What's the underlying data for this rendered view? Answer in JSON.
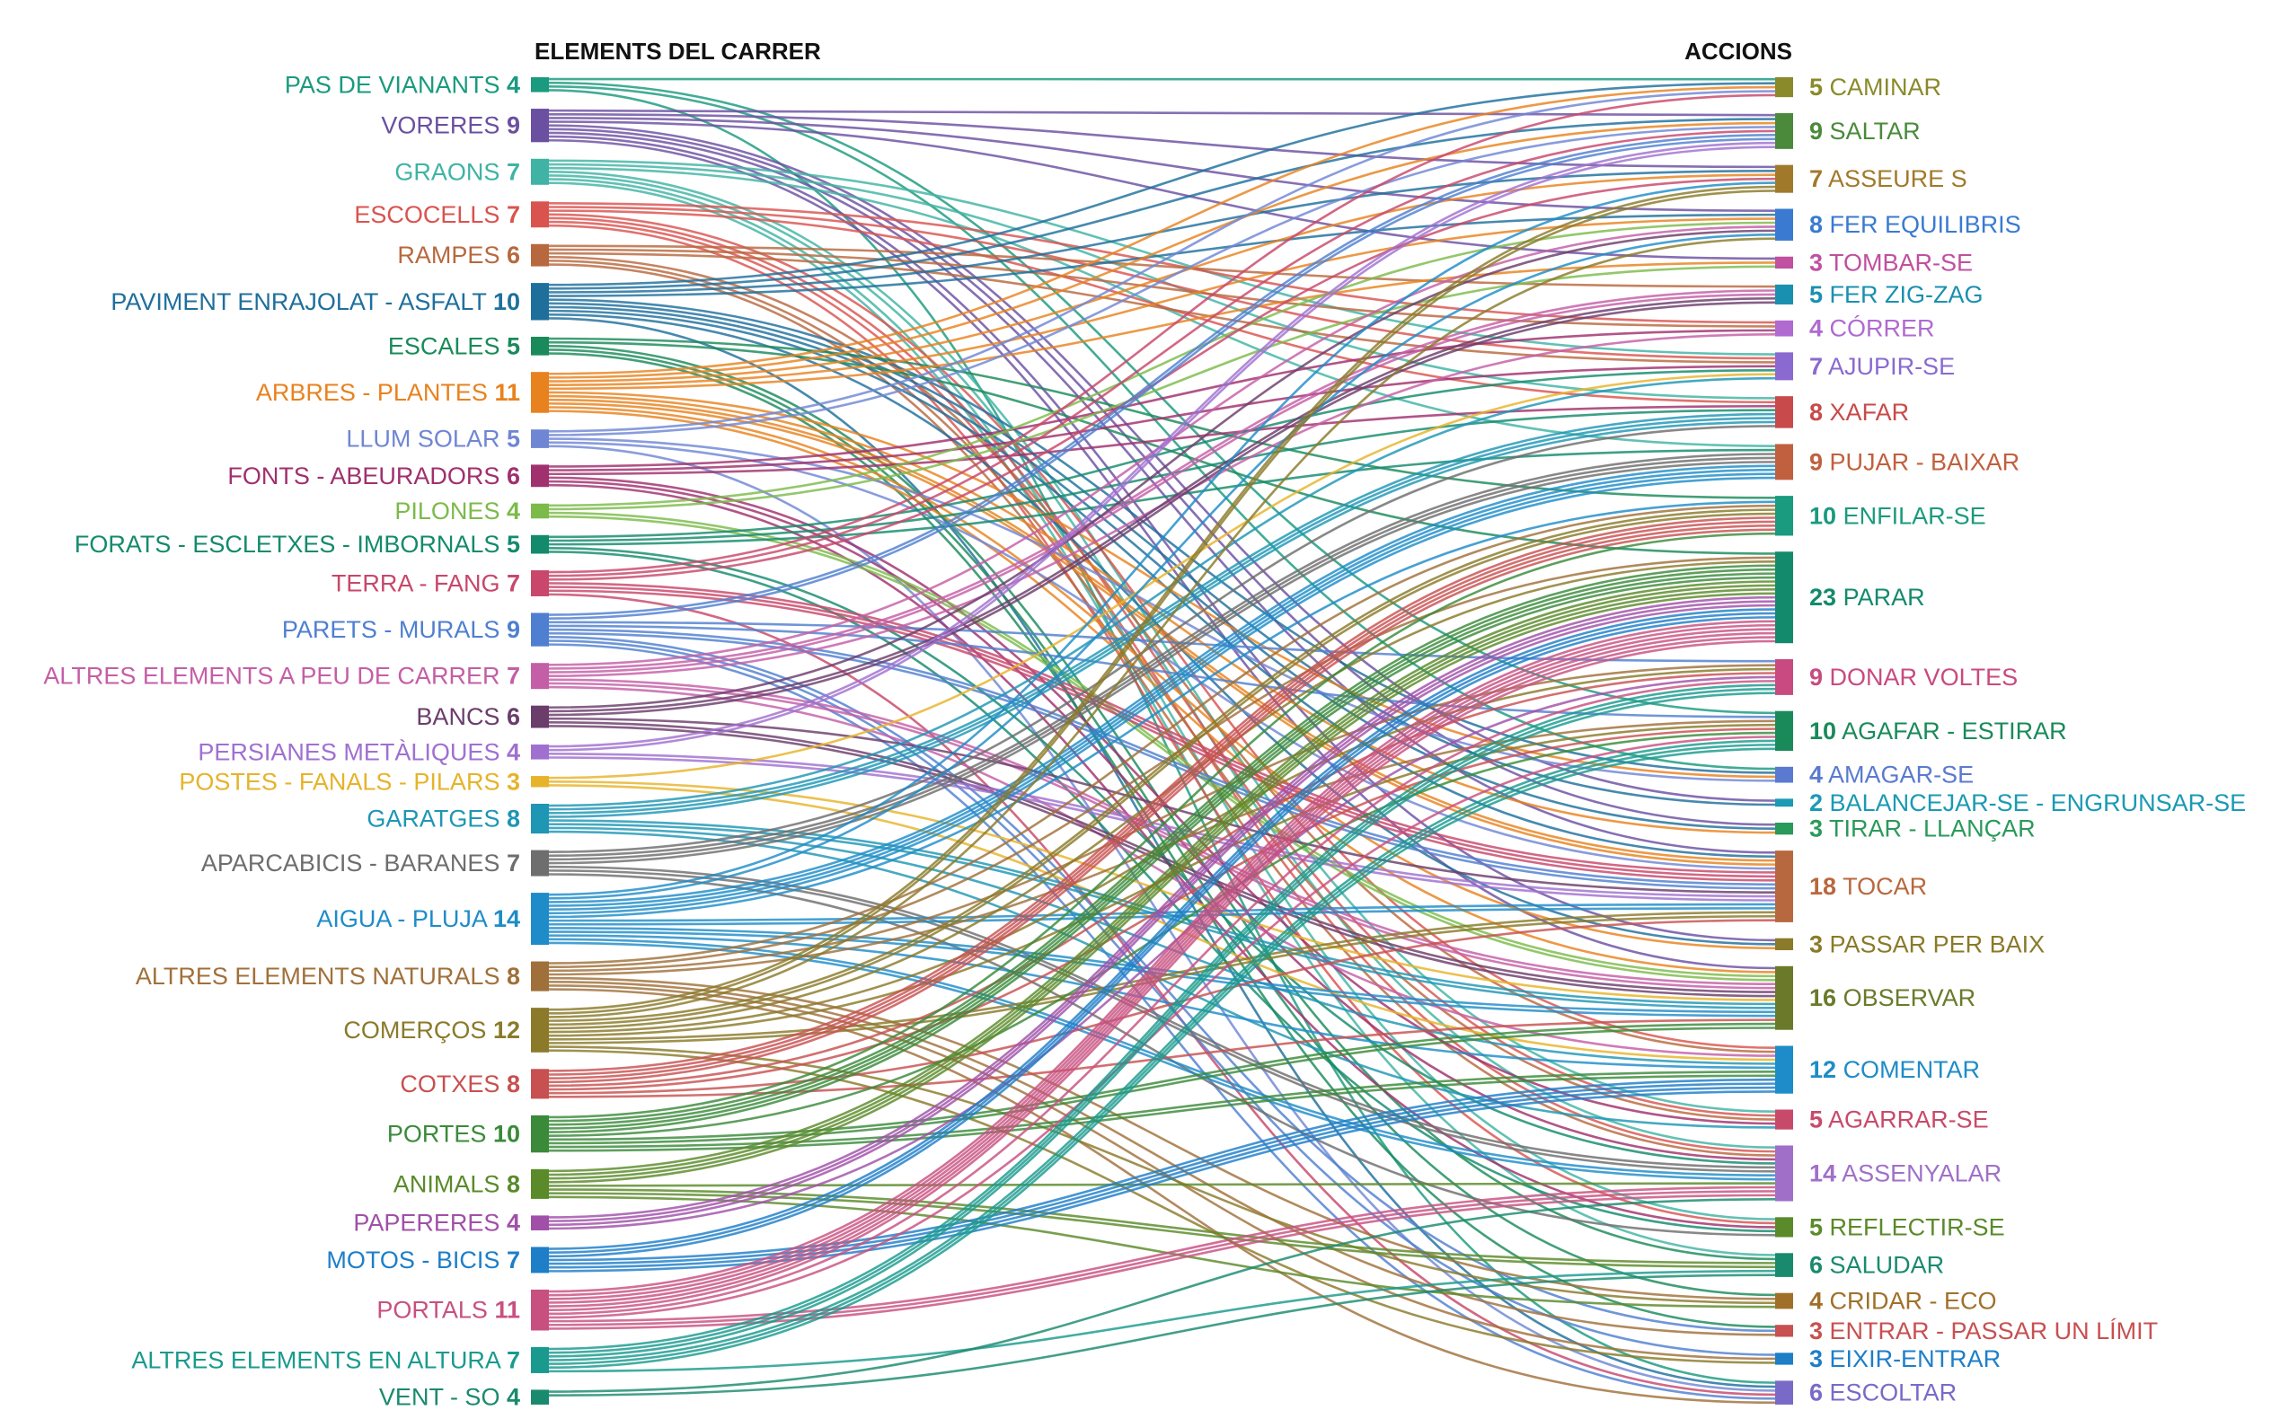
{
  "chart_data": {
    "type": "sankey",
    "left_header": "ELEMENTS DEL CARRER",
    "right_header": "ACCIONS",
    "left_nodes": [
      {
        "name": "PAS DE VIANANTS",
        "value": 4,
        "color": "#1a9a7e"
      },
      {
        "name": "VORERES",
        "value": 9,
        "color": "#6b4fa1"
      },
      {
        "name": "GRAONS",
        "value": 7,
        "color": "#3fb3a4"
      },
      {
        "name": "ESCOCELLS",
        "value": 7,
        "color": "#d9534f"
      },
      {
        "name": "RAMPES",
        "value": 6,
        "color": "#b8683e"
      },
      {
        "name": "PAVIMENT ENRAJOLAT - ASFALT",
        "value": 10,
        "color": "#1f6f9c"
      },
      {
        "name": "ESCALES",
        "value": 5,
        "color": "#1a8a5a"
      },
      {
        "name": "ARBRES - PLANTES",
        "value": 11,
        "color": "#e8821e"
      },
      {
        "name": "LLUM SOLAR",
        "value": 5,
        "color": "#6f86d4"
      },
      {
        "name": "FONTS - ABEURADORS",
        "value": 6,
        "color": "#a0306e"
      },
      {
        "name": "PILONES",
        "value": 4,
        "color": "#7cbb4a"
      },
      {
        "name": "FORATS - ESCLETXES - IMBORNALS",
        "value": 5,
        "color": "#138a6c"
      },
      {
        "name": "TERRA - FANG",
        "value": 7,
        "color": "#c8476a"
      },
      {
        "name": "PARETS - MURALS",
        "value": 9,
        "color": "#4f7fd0"
      },
      {
        "name": "ALTRES ELEMENTS A PEU DE CARRER",
        "value": 7,
        "color": "#c45ea6"
      },
      {
        "name": "BANCS",
        "value": 6,
        "color": "#6b3d6b"
      },
      {
        "name": "PERSIANES METÀLIQUES",
        "value": 4,
        "color": "#a070d0"
      },
      {
        "name": "POSTES - FANALS - PILARS",
        "value": 3,
        "color": "#e6b32a"
      },
      {
        "name": "GARATGES",
        "value": 8,
        "color": "#1e96b4"
      },
      {
        "name": "APARCABICIS - BARANES",
        "value": 7,
        "color": "#6e6e6e"
      },
      {
        "name": "AIGUA - PLUJA",
        "value": 14,
        "color": "#1e8cc8"
      },
      {
        "name": "ALTRES ELEMENTS NATURALS",
        "value": 8,
        "color": "#a0703a"
      },
      {
        "name": "COMERÇOS",
        "value": 12,
        "color": "#8a7a2a"
      },
      {
        "name": "COTXES",
        "value": 8,
        "color": "#c85050"
      },
      {
        "name": "PORTES",
        "value": 10,
        "color": "#3a8a3a"
      },
      {
        "name": "ANIMALS",
        "value": 8,
        "color": "#5a8a2a"
      },
      {
        "name": "PAPERERES",
        "value": 4,
        "color": "#a050a8"
      },
      {
        "name": "MOTOS - BICIS",
        "value": 7,
        "color": "#1e7ec8"
      },
      {
        "name": "PORTALS",
        "value": 11,
        "color": "#c85080"
      },
      {
        "name": "ALTRES ELEMENTS EN ALTURA",
        "value": 7,
        "color": "#1a9a8e"
      },
      {
        "name": "VENT - SO",
        "value": 4,
        "color": "#1a8a6e"
      }
    ],
    "right_nodes": [
      {
        "name": "CAMINAR",
        "value": 5,
        "color": "#8a8a2a"
      },
      {
        "name": "SALTAR",
        "value": 9,
        "color": "#4a8a3a"
      },
      {
        "name": "ASSEURE S",
        "value": 7,
        "color": "#a07a2a"
      },
      {
        "name": "FER EQUILIBRIS",
        "value": 8,
        "color": "#3a7ad0"
      },
      {
        "name": "TOMBAR-SE",
        "value": 3,
        "color": "#c050a0"
      },
      {
        "name": "FER ZIG-ZAG",
        "value": 5,
        "color": "#1a90b0"
      },
      {
        "name": "CÓRRER",
        "value": 4,
        "color": "#b06ad0"
      },
      {
        "name": "AJUPIR-SE",
        "value": 7,
        "color": "#8a6ad0"
      },
      {
        "name": "XAFAR",
        "value": 8,
        "color": "#c84a4a"
      },
      {
        "name": "PUJAR - BAIXAR",
        "value": 9,
        "color": "#c0603e"
      },
      {
        "name": "ENFILAR-SE",
        "value": 10,
        "color": "#1a9a7e"
      },
      {
        "name": "PARAR",
        "value": 23,
        "color": "#138a6c"
      },
      {
        "name": "DONAR VOLTES",
        "value": 9,
        "color": "#c84a80"
      },
      {
        "name": "AGAFAR - ESTIRAR",
        "value": 10,
        "color": "#1a8a5a"
      },
      {
        "name": "AMAGAR-SE",
        "value": 4,
        "color": "#5a7ad0"
      },
      {
        "name": "BALANCEJAR-SE - ENGRUNSAR-SE",
        "value": 2,
        "color": "#1a9ab4"
      },
      {
        "name": "TIRAR - LLANÇAR",
        "value": 3,
        "color": "#2a9a5a"
      },
      {
        "name": "TOCAR",
        "value": 18,
        "color": "#b8683e"
      },
      {
        "name": "PASSAR PER BAIX",
        "value": 3,
        "color": "#8a7a2a"
      },
      {
        "name": "OBSERVAR",
        "value": 16,
        "color": "#6a7a2a"
      },
      {
        "name": "COMENTAR",
        "value": 12,
        "color": "#1e8cc8"
      },
      {
        "name": "AGARRAR-SE",
        "value": 5,
        "color": "#c84a6a"
      },
      {
        "name": "ASSENYALAR",
        "value": 14,
        "color": "#a070c8"
      },
      {
        "name": "REFLECTIR-SE",
        "value": 5,
        "color": "#5a8a2a"
      },
      {
        "name": "SALUDAR",
        "value": 6,
        "color": "#1a8a6e"
      },
      {
        "name": "CRIDAR - ECO",
        "value": 4,
        "color": "#a0702a"
      },
      {
        "name": "ENTRAR - PASSAR UN LÍMIT",
        "value": 3,
        "color": "#c85050"
      },
      {
        "name": "EIXIR-ENTRAR",
        "value": 3,
        "color": "#1e7ec8"
      },
      {
        "name": "ESCOLTAR",
        "value": 6,
        "color": "#7a6ac8"
      }
    ]
  }
}
